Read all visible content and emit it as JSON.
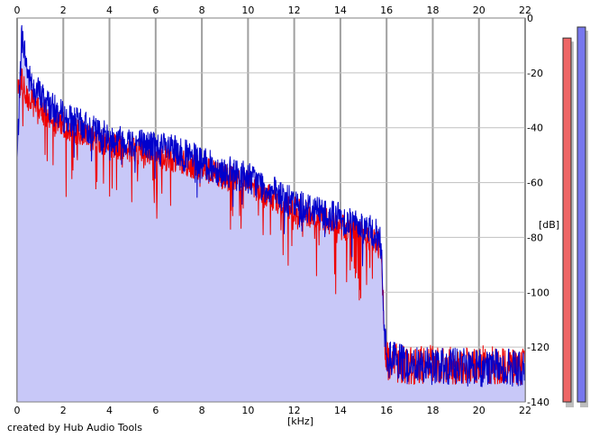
{
  "chart_data": {
    "type": "line",
    "title": "",
    "xlabel": "[kHz]",
    "ylabel": "[dB]",
    "xlim": [
      0,
      22
    ],
    "ylim": [
      -140,
      0
    ],
    "x_ticks": [
      0,
      2,
      4,
      6,
      8,
      10,
      12,
      14,
      16,
      18,
      20,
      22
    ],
    "y_ticks": [
      0,
      -20,
      -40,
      -60,
      -80,
      -100,
      -120,
      -140
    ],
    "grid": true,
    "legend": "none",
    "series": [
      {
        "color": "#0000cc",
        "fill": "#c8c8f8",
        "x": [
          0,
          0.2,
          0.5,
          1,
          1.5,
          2,
          3,
          4,
          5,
          6,
          7,
          8,
          9,
          10,
          11,
          12,
          13,
          14,
          15,
          15.7,
          15.8,
          15.9,
          16,
          17,
          18,
          19,
          20,
          21,
          22
        ],
        "y": [
          -52,
          -6,
          -22,
          -28,
          -33,
          -36,
          -40,
          -44,
          -45,
          -47,
          -49,
          -53,
          -56,
          -58,
          -63,
          -68,
          -70,
          -73,
          -76,
          -80,
          -88,
          -114,
          -124,
          -127,
          -127,
          -127,
          -128,
          -127,
          -128
        ]
      },
      {
        "color": "#ee0000",
        "x": [
          0,
          0.2,
          0.5,
          1,
          1.5,
          2,
          3,
          4,
          5,
          6,
          7,
          8,
          9,
          10,
          11,
          12,
          13,
          14,
          15,
          15.7,
          15.8,
          15.9,
          16,
          17,
          18,
          19,
          20,
          21,
          22
        ],
        "y": [
          -28,
          -22,
          -30,
          -33,
          -37,
          -39,
          -43,
          -46,
          -48,
          -50,
          -52,
          -55,
          -58,
          -60,
          -65,
          -70,
          -73,
          -76,
          -79,
          -83,
          -90,
          -115,
          -125,
          -127,
          -126,
          -127,
          -126,
          -127,
          -127
        ]
      }
    ],
    "level_meters": [
      {
        "color": "#ee6666",
        "level_db": -4
      },
      {
        "color": "#7777ee",
        "level_db": 0
      }
    ]
  },
  "footer": {
    "credit": "created by Hub Audio Tools"
  }
}
